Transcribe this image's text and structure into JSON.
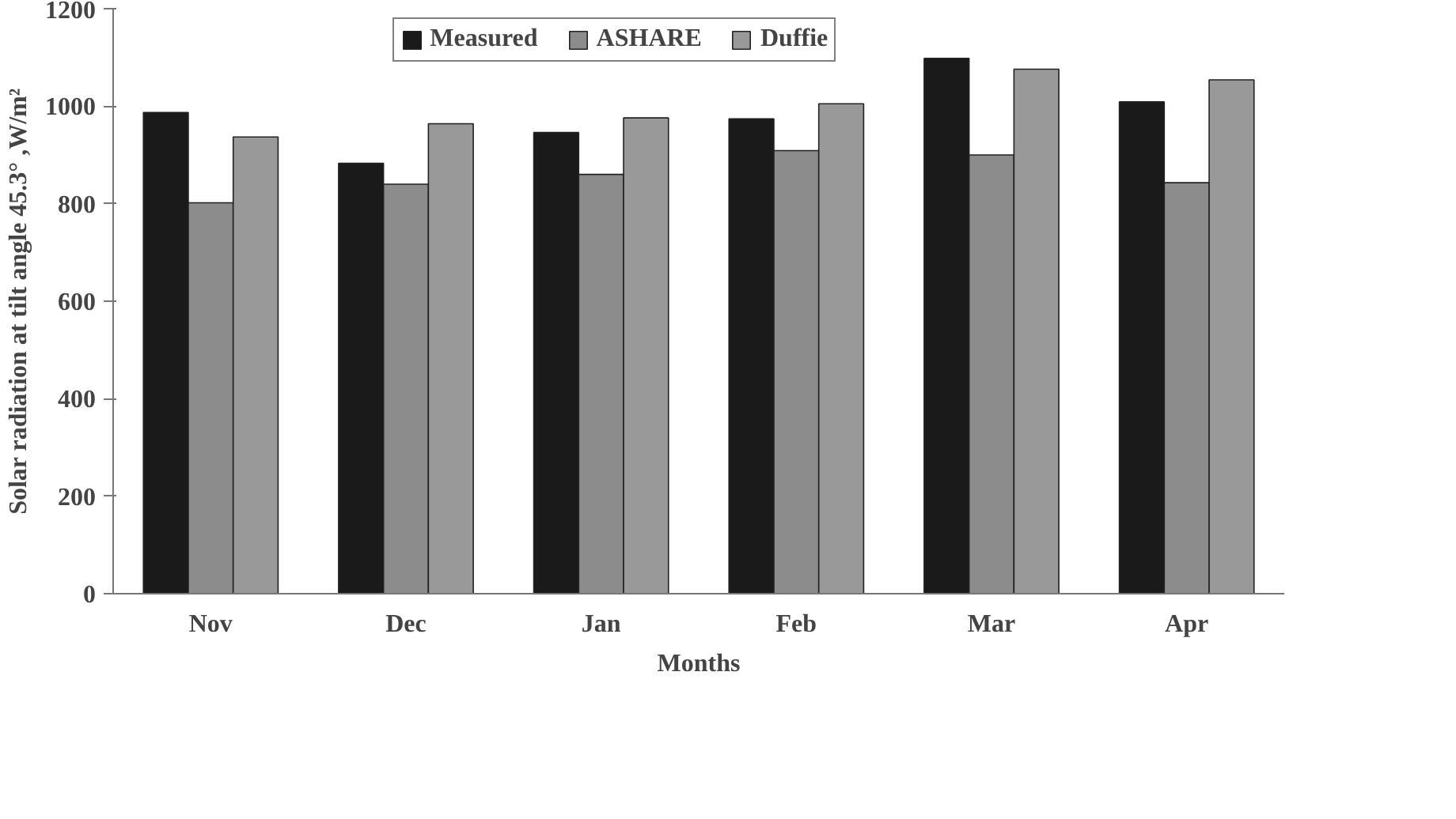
{
  "chart_data": {
    "type": "bar",
    "xlabel": "Months",
    "ylabel": "Solar radiation at tilt angle 45.3° ,W/m²",
    "categories": [
      "Nov",
      "Dec",
      "Jan",
      "Feb",
      "Mar",
      "Apr"
    ],
    "series": [
      {
        "name": "Measured",
        "color": "#1a1a1a",
        "values": [
          987,
          883,
          946,
          974,
          1098,
          1009
        ]
      },
      {
        "name": "ASHARE",
        "color": "#8c8c8c",
        "values": [
          802,
          840,
          860,
          909,
          900,
          843
        ]
      },
      {
        "name": "Duffie",
        "color": "#999999",
        "values": [
          937,
          964,
          976,
          1005,
          1076,
          1054
        ]
      }
    ],
    "ylim": [
      0,
      1200
    ],
    "yticks": [
      0,
      200,
      400,
      600,
      800,
      1000,
      1200
    ],
    "grid": false,
    "legend": "top"
  }
}
